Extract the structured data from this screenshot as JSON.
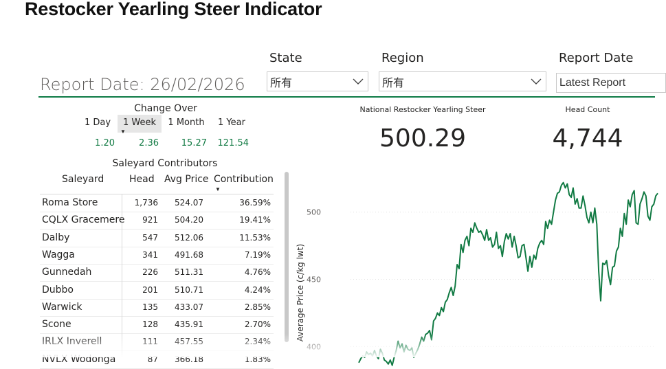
{
  "page_title": "Restocker Yearling Steer Indicator",
  "report_date_text": "Report Date: 26/02/2026",
  "filters": [
    {
      "label": "State",
      "value": "所有"
    },
    {
      "label": "Region",
      "value": "所有"
    },
    {
      "label": "Report Date",
      "value": "Latest Report"
    }
  ],
  "change_over": {
    "title": "Change Over",
    "periods": [
      {
        "label": "1 Day",
        "value": "1.20"
      },
      {
        "label": "1 Week",
        "value": "2.36",
        "active": true
      },
      {
        "label": "1 Month",
        "value": "15.27"
      },
      {
        "label": "1 Year",
        "value": "121.54"
      }
    ]
  },
  "contributors": {
    "title": "Saleyard Contributors",
    "headers": [
      "Saleyard",
      "Head",
      "Avg Price",
      "Contribution"
    ],
    "rows": [
      [
        "Roma Store",
        "1,736",
        "524.07",
        "36.59%"
      ],
      [
        "CQLX Gracemere",
        "921",
        "504.20",
        "19.41%"
      ],
      [
        "Dalby",
        "547",
        "512.06",
        "11.53%"
      ],
      [
        "Wagga",
        "341",
        "491.68",
        "7.19%"
      ],
      [
        "Gunnedah",
        "226",
        "511.31",
        "4.76%"
      ],
      [
        "Dubbo",
        "201",
        "510.71",
        "4.24%"
      ],
      [
        "Warwick",
        "135",
        "433.07",
        "2.85%"
      ],
      [
        "Scone",
        "128",
        "435.91",
        "2.70%"
      ],
      [
        "IRLX Inverell",
        "111",
        "457.55",
        "2.34%"
      ],
      [
        "NVLX Wodonga",
        "87",
        "366.18",
        "1.83%"
      ]
    ]
  },
  "kpis": {
    "national_label": "National Restocker Yearling Steer",
    "national_value": "500.29",
    "head_count_label": "Head Count",
    "head_count_value": "4,744"
  },
  "colors": {
    "accent": "#0d7a45",
    "line": "#117a43"
  },
  "chart_data": {
    "type": "line",
    "ylabel": "Average Price (c/kg lwt)",
    "xlabel": "",
    "yticks": [
      400,
      450,
      500
    ],
    "ylim": [
      392,
      530
    ],
    "series": [
      {
        "values": [
          388,
          391,
          393,
          392,
          396,
          394,
          395,
          393,
          397,
          393,
          391,
          398,
          395,
          390,
          389,
          387,
          390,
          386,
          392,
          397,
          404,
          399,
          402,
          396,
          401,
          398,
          397,
          399,
          392,
          395,
          398,
          402,
          407,
          404,
          409,
          410,
          412,
          405,
          419,
          421,
          425,
          423,
          429,
          426,
          433,
          435,
          440,
          444,
          438,
          445,
          461,
          458,
          476,
          470,
          479,
          482,
          475,
          488,
          485,
          492,
          488,
          485,
          486,
          483,
          479,
          487,
          479,
          481,
          474,
          476,
          485,
          473,
          475,
          467,
          478,
          484,
          480,
          484,
          474,
          482,
          475,
          466,
          467,
          475,
          476,
          466,
          456,
          467,
          459,
          468,
          465,
          473,
          477,
          479,
          476,
          493,
          488,
          494,
          491,
          500,
          509,
          514,
          515,
          520,
          522,
          518,
          521,
          513,
          511,
          518,
          506,
          510,
          503,
          503,
          512,
          505,
          496,
          492,
          500,
          492,
          503,
          491,
          456,
          434,
          462,
          461,
          464,
          453,
          446,
          459,
          460,
          471,
          474,
          488,
          482,
          499,
          491,
          509,
          504,
          513,
          516,
          492,
          491,
          506,
          510,
          515,
          512,
          497,
          494,
          504,
          506,
          512,
          514
        ]
      }
    ]
  }
}
